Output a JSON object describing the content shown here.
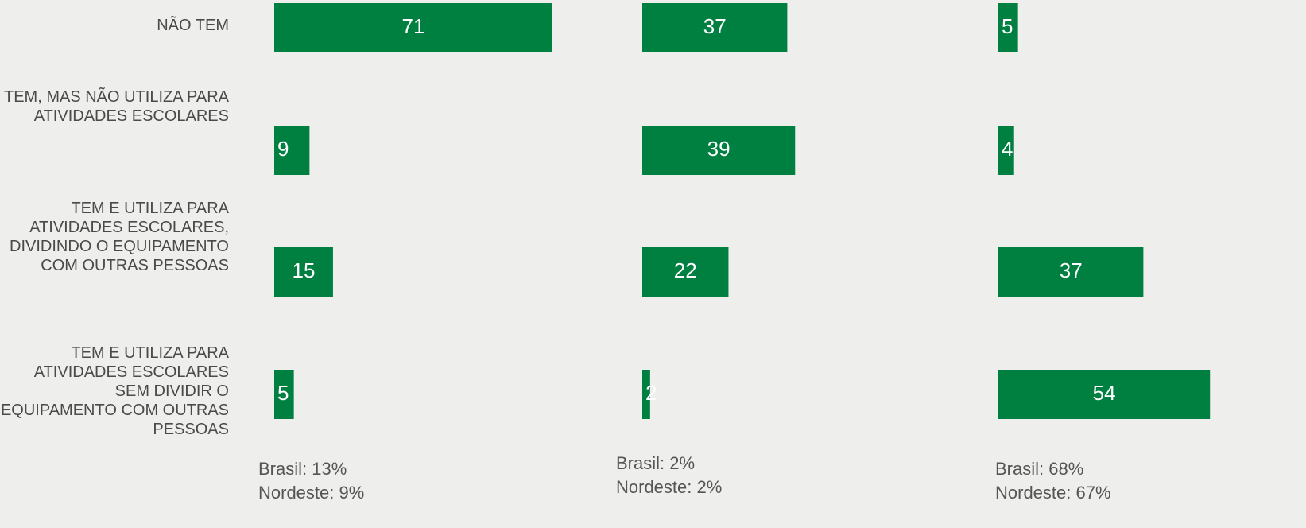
{
  "chart_data": {
    "type": "bar",
    "orientation": "horizontal",
    "color": "#008040",
    "categories": [
      "NÃO TEM",
      "TEM, MAS NÃO UTILIZA PARA ATIVIDADES ESCOLARES",
      "TEM E UTILIZA PARA ATIVIDADES ESCOLARES, DIVIDINDO O EQUIPAMENTO COM OUTRAS PESSOAS",
      "TEM E UTILIZA PARA ATIVIDADES ESCOLARES SEM DIVIDIR O EQUIPAMENTO COM OUTRAS PESSOAS"
    ],
    "panels": [
      {
        "values": [
          71,
          9,
          15,
          5
        ],
        "notes": [
          "Brasil: 13%",
          "Nordeste: 9%"
        ]
      },
      {
        "values": [
          37,
          39,
          22,
          2
        ],
        "notes": [
          "Brasil: 2%",
          "Nordeste: 2%"
        ]
      },
      {
        "values": [
          5,
          4,
          37,
          54
        ],
        "notes": [
          "Brasil: 68%",
          "Nordeste: 67%"
        ]
      }
    ]
  }
}
